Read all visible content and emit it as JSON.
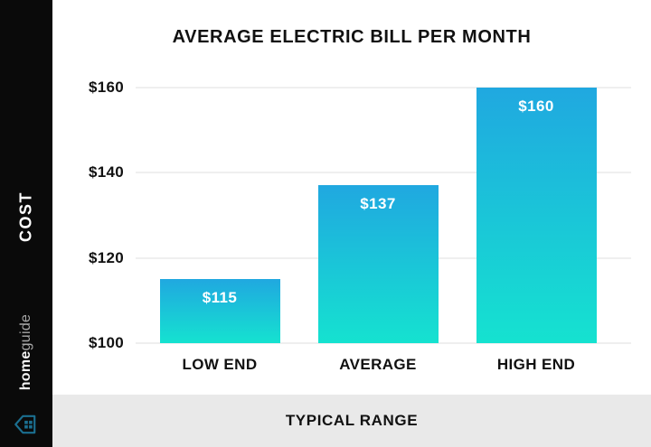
{
  "sidebar": {
    "cost_label": "COST",
    "brand_bold": "home",
    "brand_light": "guide"
  },
  "chart_data": {
    "type": "bar",
    "title": "AVERAGE ELECTRIC BILL PER MONTH",
    "categories": [
      "LOW END",
      "AVERAGE",
      "HIGH END"
    ],
    "values": [
      115,
      137,
      160
    ],
    "value_labels": [
      "$115",
      "$137",
      "$160"
    ],
    "y_ticks": [
      100,
      120,
      140,
      160
    ],
    "y_tick_labels": [
      "$100",
      "$120",
      "$140",
      "$160"
    ],
    "ylim": [
      100,
      160
    ],
    "xlabel": "TYPICAL RANGE",
    "ylabel": "COST",
    "grid": true,
    "legend": "none"
  },
  "footer": {
    "label": "TYPICAL RANGE"
  },
  "colors": {
    "sidebar_bg": "#0a0a0a",
    "text": "#111111",
    "grid": "#efefef",
    "footer_bg": "#e9e9e9",
    "bar_top": "#20a8e0",
    "bar_bottom": "#15e2d0",
    "value_text": "#ffffff",
    "brand_bold": "#f5f5f5",
    "brand_light": "#a8a8a8",
    "icon": "#1b6f90"
  }
}
